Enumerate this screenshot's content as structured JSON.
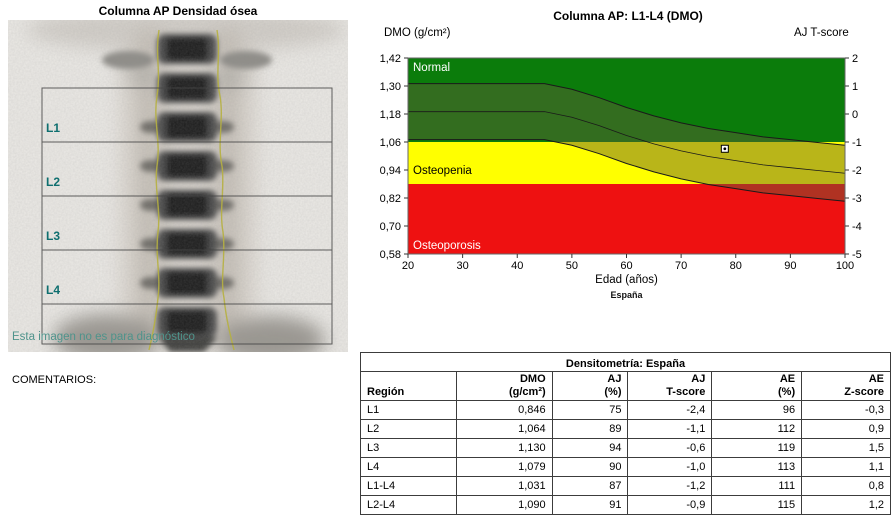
{
  "scan": {
    "title": "Columna AP Densidad ósea",
    "regions": [
      "L1",
      "L2",
      "L3",
      "L4"
    ],
    "disclaimer": "Esta imagen no es para diagnóstico"
  },
  "comments_label": "COMENTARIOS:",
  "chart_data": {
    "type": "area",
    "title": "Columna AP: L1-L4 (DMO)",
    "x_axis": {
      "label": "Edad (años)",
      "min": 20,
      "max": 100,
      "ticks": [
        20,
        30,
        40,
        50,
        60,
        70,
        80,
        90,
        100
      ]
    },
    "y_left": {
      "label": "DMO (g/cm²)",
      "min": 0.58,
      "max": 1.42,
      "ticks": [
        1.42,
        1.3,
        1.18,
        1.06,
        0.94,
        0.82,
        0.7,
        0.58
      ],
      "tick_labels": [
        "1,42",
        "1,30",
        "1,18",
        "1,06",
        "0,94",
        "0,82",
        "0,70",
        "0,58"
      ]
    },
    "y_right": {
      "label": "AJ T-score",
      "min": -5,
      "max": 2,
      "ticks": [
        2,
        1,
        0,
        -1,
        -2,
        -3,
        -4,
        -5
      ]
    },
    "zones": [
      {
        "name": "Normal",
        "from": 1.06,
        "to": 1.42,
        "color": "#0b7c0b",
        "text_color": "#ffffff"
      },
      {
        "name": "Osteopenia",
        "from": 0.88,
        "to": 1.06,
        "color": "#ffff00",
        "text_color": "#000000"
      },
      {
        "name": "Osteoporosis",
        "from": 0.58,
        "to": 0.88,
        "color": "#ee1111",
        "text_color": "#ffffff"
      }
    ],
    "reference_band": {
      "ages": [
        20,
        40,
        45,
        50,
        55,
        60,
        65,
        70,
        75,
        80,
        85,
        90,
        95,
        100
      ],
      "mean": [
        1.19,
        1.19,
        1.19,
        1.166,
        1.13,
        1.088,
        1.052,
        1.022,
        0.998,
        0.98,
        0.962,
        0.95,
        0.938,
        0.926
      ],
      "sd": 0.12,
      "overlay_color": "rgba(100,90,55,0.45)",
      "line_color": "#1a1a1a"
    },
    "patient_point": {
      "age": 78,
      "dmo": 1.031
    },
    "footnote": "España"
  },
  "table": {
    "title": "Densitometría: España",
    "headers": [
      [
        "",
        "Región"
      ],
      [
        "DMO",
        "(g/cm²)"
      ],
      [
        "AJ",
        "(%)"
      ],
      [
        "AJ",
        "T-score"
      ],
      [
        "AE",
        "(%)"
      ],
      [
        "AE",
        "Z-score"
      ]
    ],
    "rows": [
      {
        "region": "L1",
        "values": [
          "0,846",
          "75",
          "-2,4",
          "96",
          "-0,3"
        ]
      },
      {
        "region": "L2",
        "values": [
          "1,064",
          "89",
          "-1,1",
          "112",
          "0,9"
        ]
      },
      {
        "region": "L3",
        "values": [
          "1,130",
          "94",
          "-0,6",
          "119",
          "1,5"
        ]
      },
      {
        "region": "L4",
        "values": [
          "1,079",
          "90",
          "-1,0",
          "113",
          "1,1"
        ]
      },
      {
        "region": "L1-L4",
        "values": [
          "1,031",
          "87",
          "-1,2",
          "111",
          "0,8"
        ]
      },
      {
        "region": "L2-L4",
        "values": [
          "1,090",
          "91",
          "-0,9",
          "115",
          "1,2"
        ]
      }
    ]
  }
}
